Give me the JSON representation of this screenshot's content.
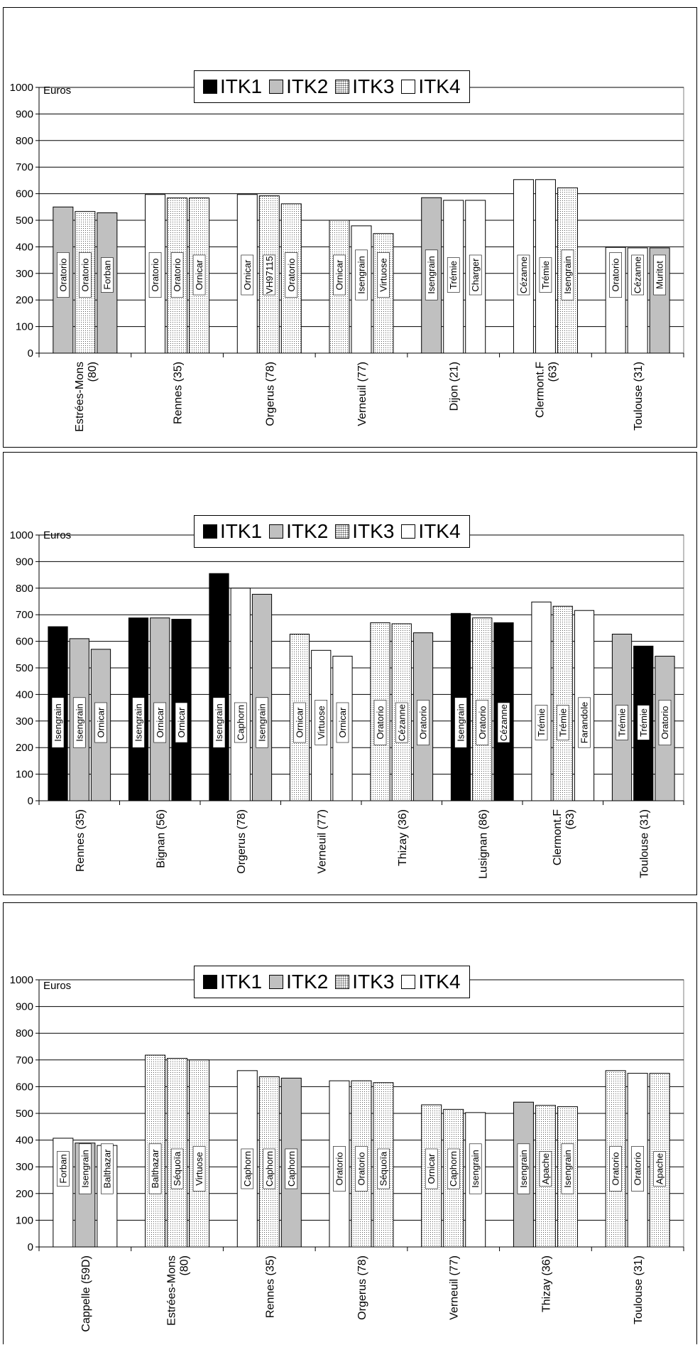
{
  "legend": [
    "ITK1",
    "ITK2",
    "ITK3",
    "ITK4"
  ],
  "fills": {
    "ITK1": "#000000",
    "ITK2": "#c0c0c0",
    "ITK3": "dotted",
    "ITK4": "#ffffff"
  },
  "chart_data": [
    {
      "type": "bar",
      "ylabel": "Euros",
      "ylim": [
        0,
        1000
      ],
      "yticks": [
        0,
        100,
        200,
        300,
        400,
        500,
        600,
        700,
        800,
        900,
        1000
      ],
      "grid": true,
      "legend_position": "top-center",
      "categories": [
        "Estrées-Mons (80)",
        "Rennes (35)",
        "Orgerus (78)",
        "Verneuil (77)",
        "Dijon (21)",
        "Clermont.F (63)",
        "Toulouse (31)"
      ],
      "category_lines": [
        [
          "Estrées-Mons",
          "(80)"
        ],
        [
          "Rennes (35)"
        ],
        [
          "Orgerus (78)"
        ],
        [
          "Verneuil (77)"
        ],
        [
          "Dijon (21)"
        ],
        [
          "Clermont.F",
          "(63)"
        ],
        [
          "Toulouse (31)"
        ]
      ],
      "groups": [
        [
          {
            "itk": "ITK2",
            "value": 550,
            "label": "Oratorio"
          },
          {
            "itk": "ITK3",
            "value": 533,
            "label": "Oratorio"
          },
          {
            "itk": "ITK2",
            "value": 528,
            "label": "Forban"
          }
        ],
        [
          {
            "itk": "ITK4",
            "value": 597,
            "label": "Oratorio"
          },
          {
            "itk": "ITK3",
            "value": 584,
            "label": "Oratorio"
          },
          {
            "itk": "ITK3",
            "value": 584,
            "label": "Ornicar"
          }
        ],
        [
          {
            "itk": "ITK4",
            "value": 597,
            "label": "Ornicar"
          },
          {
            "itk": "ITK3",
            "value": 592,
            "label": "VH97115"
          },
          {
            "itk": "ITK3",
            "value": 562,
            "label": "Oratorio"
          }
        ],
        [
          {
            "itk": "ITK3",
            "value": 500,
            "label": "Ornicar"
          },
          {
            "itk": "ITK4",
            "value": 479,
            "label": "Isengrain"
          },
          {
            "itk": "ITK3",
            "value": 450,
            "label": "Virtuose"
          }
        ],
        [
          {
            "itk": "ITK2",
            "value": 585,
            "label": "Isengrain"
          },
          {
            "itk": "ITK4",
            "value": 575,
            "label": "Trémie"
          },
          {
            "itk": "ITK4",
            "value": 575,
            "label": "Charger"
          }
        ],
        [
          {
            "itk": "ITK4",
            "value": 653,
            "label": "Cézanne"
          },
          {
            "itk": "ITK4",
            "value": 653,
            "label": "Trémie"
          },
          {
            "itk": "ITK3",
            "value": 622,
            "label": "Isengrain"
          }
        ],
        [
          {
            "itk": "ITK4",
            "value": 398,
            "label": "Oratorio"
          },
          {
            "itk": "ITK4",
            "value": 396,
            "label": "Cézanne"
          },
          {
            "itk": "ITK2",
            "value": 396,
            "label": "Muritot"
          }
        ]
      ]
    },
    {
      "type": "bar",
      "ylabel": "Euros",
      "ylim": [
        0,
        1000
      ],
      "yticks": [
        0,
        100,
        200,
        300,
        400,
        500,
        600,
        700,
        800,
        900,
        1000
      ],
      "grid": true,
      "legend_position": "top-center",
      "categories": [
        "Rennes (35)",
        "Bignan (56)",
        "Orgerus (78)",
        "Verneuil (77)",
        "Thizay (36)",
        "Lusignan (86)",
        "Clermont.F (63)",
        "Toulouse (31)"
      ],
      "category_lines": [
        [
          "Rennes (35)"
        ],
        [
          "Bignan (56)"
        ],
        [
          "Orgerus (78)"
        ],
        [
          "Verneuil (77)"
        ],
        [
          "Thizay (36)"
        ],
        [
          "Lusignan (86)"
        ],
        [
          "Clermont.F",
          "(63)"
        ],
        [
          "Toulouse (31)"
        ]
      ],
      "groups": [
        [
          {
            "itk": "ITK1",
            "value": 655,
            "label": "Isengrain"
          },
          {
            "itk": "ITK2",
            "value": 610,
            "label": "Isengrain"
          },
          {
            "itk": "ITK2",
            "value": 570,
            "label": "Ornicar"
          }
        ],
        [
          {
            "itk": "ITK1",
            "value": 688,
            "label": "Isengrain"
          },
          {
            "itk": "ITK2",
            "value": 688,
            "label": "Ornicar"
          },
          {
            "itk": "ITK1",
            "value": 683,
            "label": "Ornicar"
          }
        ],
        [
          {
            "itk": "ITK1",
            "value": 855,
            "label": "Isengrain"
          },
          {
            "itk": "ITK4",
            "value": 800,
            "label": "Caphorn"
          },
          {
            "itk": "ITK2",
            "value": 777,
            "label": "Isengrain"
          }
        ],
        [
          {
            "itk": "ITK3",
            "value": 627,
            "label": "Ornicar"
          },
          {
            "itk": "ITK4",
            "value": 566,
            "label": "Virtuose"
          },
          {
            "itk": "ITK4",
            "value": 544,
            "label": "Ornicar"
          }
        ],
        [
          {
            "itk": "ITK3",
            "value": 670,
            "label": "Oratorio"
          },
          {
            "itk": "ITK3",
            "value": 666,
            "label": "Cézanne"
          },
          {
            "itk": "ITK2",
            "value": 632,
            "label": "Oratorio"
          }
        ],
        [
          {
            "itk": "ITK1",
            "value": 705,
            "label": "Isengrain"
          },
          {
            "itk": "ITK3",
            "value": 688,
            "label": "Oratorio"
          },
          {
            "itk": "ITK1",
            "value": 670,
            "label": "Cézanne"
          }
        ],
        [
          {
            "itk": "ITK4",
            "value": 748,
            "label": "Trémie"
          },
          {
            "itk": "ITK3",
            "value": 732,
            "label": "Trémie"
          },
          {
            "itk": "ITK4",
            "value": 716,
            "label": "Farandole"
          }
        ],
        [
          {
            "itk": "ITK2",
            "value": 627,
            "label": "Trémie"
          },
          {
            "itk": "ITK1",
            "value": 582,
            "label": "Trémie"
          },
          {
            "itk": "ITK2",
            "value": 544,
            "label": "Oratorio"
          }
        ]
      ]
    },
    {
      "type": "bar",
      "ylabel": "Euros",
      "ylim": [
        0,
        1000
      ],
      "yticks": [
        0,
        100,
        200,
        300,
        400,
        500,
        600,
        700,
        800,
        900,
        1000
      ],
      "grid": true,
      "legend_position": "top-center",
      "categories": [
        "Cappelle (59D)",
        "Estrées-Mons (80)",
        "Rennes (35)",
        "Orgerus (78)",
        "Verneuil (77)",
        "Thizay (36)",
        "Toulouse (31)"
      ],
      "category_lines": [
        [
          "Cappelle (59D)"
        ],
        [
          "Estrées-Mons",
          "(80)"
        ],
        [
          "Rennes (35)"
        ],
        [
          "Orgerus (78)"
        ],
        [
          "Verneuil (77)"
        ],
        [
          "Thizay (36)"
        ],
        [
          "Toulouse (31)"
        ]
      ],
      "groups": [
        [
          {
            "itk": "ITK4",
            "value": 407,
            "label": "Forban"
          },
          {
            "itk": "ITK2",
            "value": 389,
            "label": "Isengrain"
          },
          {
            "itk": "ITK4",
            "value": 380,
            "label": "Balthazar"
          }
        ],
        [
          {
            "itk": "ITK3",
            "value": 718,
            "label": "Balthazar"
          },
          {
            "itk": "ITK3",
            "value": 706,
            "label": "Séquoïa"
          },
          {
            "itk": "ITK3",
            "value": 700,
            "label": "Virtuose"
          }
        ],
        [
          {
            "itk": "ITK4",
            "value": 660,
            "label": "Caphorn"
          },
          {
            "itk": "ITK3",
            "value": 637,
            "label": "Caphorn"
          },
          {
            "itk": "ITK2",
            "value": 632,
            "label": "Caphorn"
          }
        ],
        [
          {
            "itk": "ITK4",
            "value": 622,
            "label": "Oratorio"
          },
          {
            "itk": "ITK3",
            "value": 622,
            "label": "Oratorio"
          },
          {
            "itk": "ITK3",
            "value": 615,
            "label": "Séquoïa"
          }
        ],
        [
          {
            "itk": "ITK3",
            "value": 532,
            "label": "Ornicar"
          },
          {
            "itk": "ITK3",
            "value": 515,
            "label": "Caphorn"
          },
          {
            "itk": "ITK4",
            "value": 503,
            "label": "Isengrain"
          }
        ],
        [
          {
            "itk": "ITK2",
            "value": 542,
            "label": "Isengrain"
          },
          {
            "itk": "ITK3",
            "value": 530,
            "label": "Apache"
          },
          {
            "itk": "ITK3",
            "value": 525,
            "label": "Isengrain"
          }
        ],
        [
          {
            "itk": "ITK3",
            "value": 660,
            "label": "Oratorio"
          },
          {
            "itk": "ITK4",
            "value": 650,
            "label": "Oratorio"
          },
          {
            "itk": "ITK3",
            "value": 650,
            "label": "Apache"
          }
        ]
      ]
    }
  ]
}
